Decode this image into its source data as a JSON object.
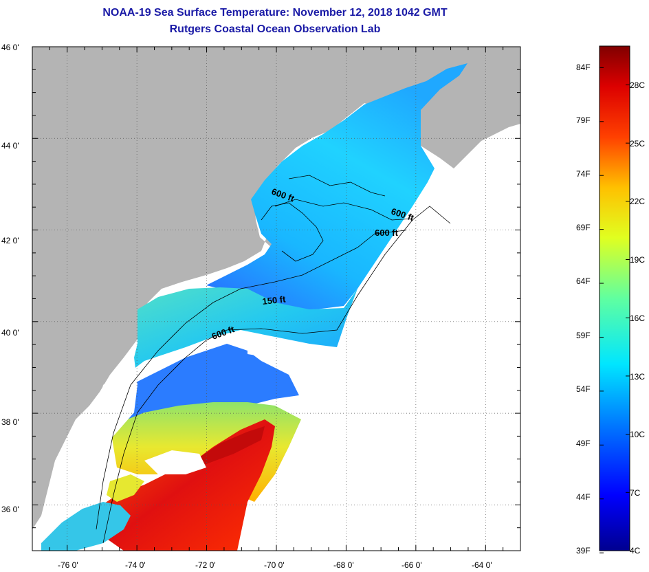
{
  "title": {
    "line1": "NOAA-19 Sea Surface Temperature:  November 12, 2018 1042 GMT",
    "line2": "Rutgers Coastal Ocean Observation Lab"
  },
  "map": {
    "latitude_ticks": [
      "46 0'",
      "44 0'",
      "42 0'",
      "40 0'",
      "38 0'",
      "36 0'"
    ],
    "longitude_ticks": [
      "-76 0'",
      "-74 0'",
      "-72 0'",
      "-70 0'",
      "-68 0'",
      "-66 0'",
      "-64 0'"
    ],
    "lat_range": [
      35,
      46
    ],
    "lon_range": [
      -77,
      -63
    ],
    "contour_labels": [
      "600 ft",
      "600 ft",
      "600 ft",
      "150 ft",
      "600 ft"
    ],
    "colors": {
      "land": "#b4b4b4",
      "no_data": "#ffffff",
      "title": "#1a1aa6"
    }
  },
  "colorbar": {
    "fahrenheit_labels": [
      "84F",
      "79F",
      "74F",
      "69F",
      "64F",
      "59F",
      "54F",
      "49F",
      "44F",
      "39F"
    ],
    "celsius_labels": [
      "28C",
      "25C",
      "22C",
      "19C",
      "16C",
      "13C",
      "10C",
      "7C",
      "4C"
    ],
    "range_c": [
      4,
      30
    ],
    "colormap": [
      "#00008f",
      "#0000ff",
      "#0080ff",
      "#00ffff",
      "#80ff80",
      "#ffff00",
      "#ff8000",
      "#ff0000",
      "#800000"
    ]
  }
}
